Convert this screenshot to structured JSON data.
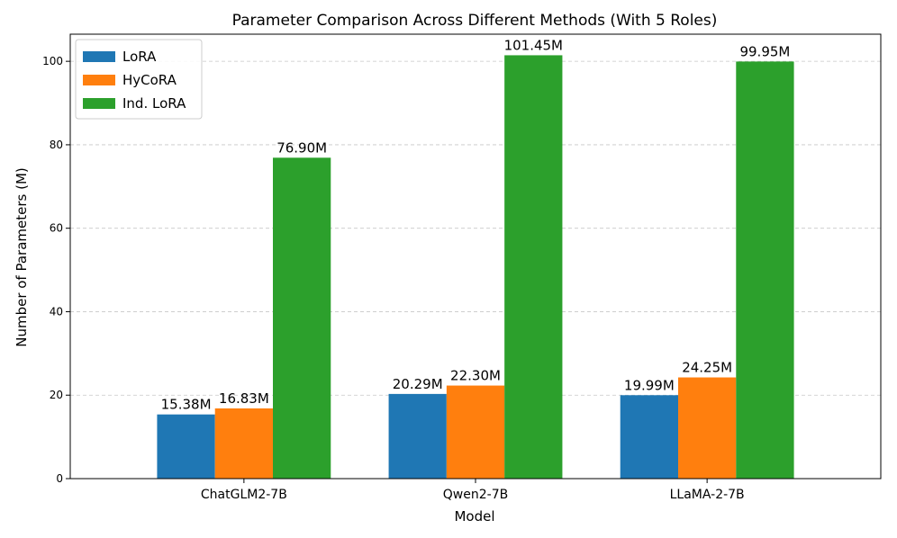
{
  "chart_data": {
    "type": "bar",
    "title": "Parameter Comparison Across Different Methods (With 5 Roles)",
    "xlabel": "Model",
    "ylabel": "Number of Parameters (M)",
    "categories": [
      "ChatGLM2-7B",
      "Qwen2-7B",
      "LLaMA-2-7B"
    ],
    "series": [
      {
        "name": "LoRA",
        "color": "#1f77b4",
        "values": [
          15.38,
          20.29,
          19.99
        ],
        "labels": [
          "15.38M",
          "20.29M",
          "19.99M"
        ]
      },
      {
        "name": "HyCoRA",
        "color": "#ff7f0e",
        "values": [
          16.83,
          22.3,
          24.25
        ],
        "labels": [
          "16.83M",
          "22.30M",
          "24.25M"
        ]
      },
      {
        "name": "Ind. LoRA",
        "color": "#2ca02c",
        "values": [
          76.9,
          101.45,
          99.95
        ],
        "labels": [
          "76.90M",
          "101.45M",
          "99.95M"
        ]
      }
    ],
    "yticks": [
      0,
      20,
      40,
      60,
      80,
      100
    ],
    "ylim": [
      0,
      106.5
    ],
    "grid": "y-dashed",
    "legend_position": "top-left"
  }
}
